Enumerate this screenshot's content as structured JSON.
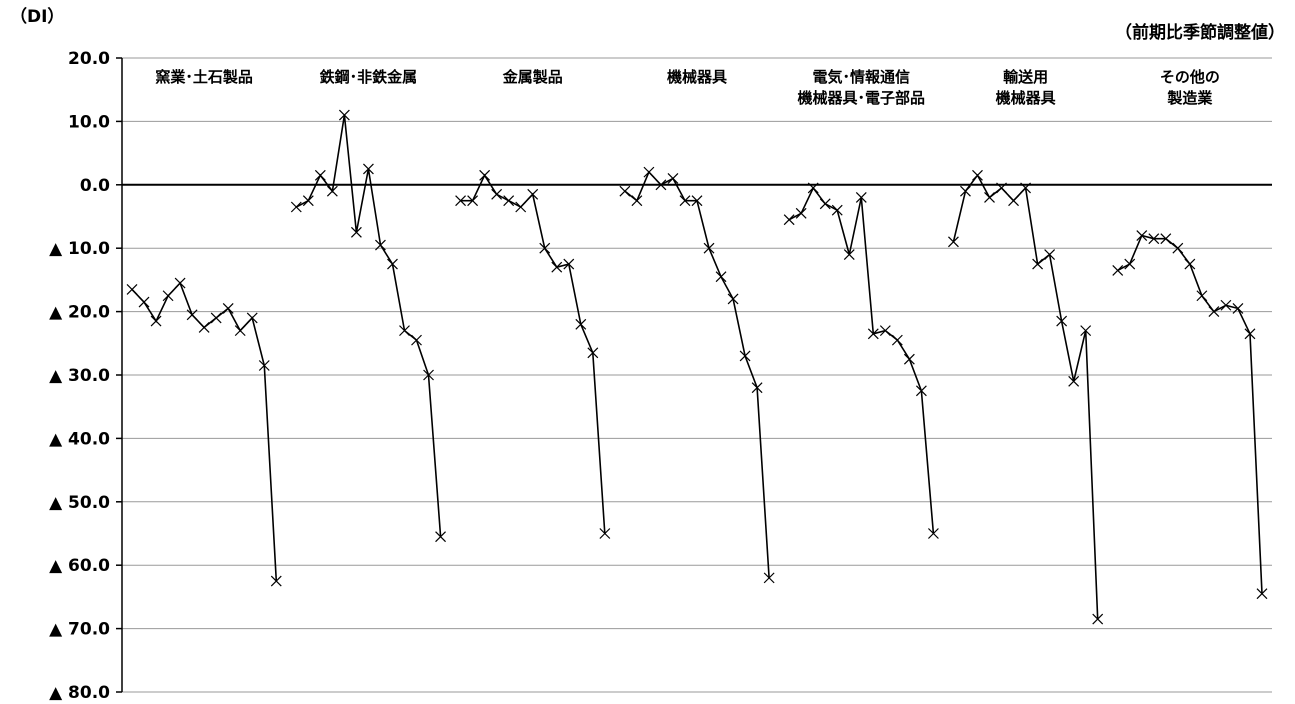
{
  "unit_left": "（DI）",
  "unit_right": "（前期比季節調整値）",
  "chart_data": {
    "type": "line",
    "ylim": [
      -80,
      20
    ],
    "y_ticks": [
      20,
      10,
      0,
      -10,
      -20,
      -30,
      -40,
      -50,
      -60,
      -70,
      -80
    ],
    "y_tick_labels": [
      "20.0",
      "10.0",
      "0.0",
      "▲ 10.0",
      "▲ 20.0",
      "▲ 30.0",
      "▲ 40.0",
      "▲ 50.0",
      "▲ 60.0",
      "▲ 70.0",
      "▲ 80.0"
    ],
    "grid": true,
    "marker": "x",
    "industries": [
      {
        "label": [
          "窯業･土石製品"
        ],
        "values": [
          -16.5,
          -18.5,
          -21.5,
          -17.5,
          -15.5,
          -20.5,
          -22.5,
          -21.0,
          -19.5,
          -23.0,
          -21.0,
          -28.5,
          -62.5
        ]
      },
      {
        "label": [
          "鉄鋼･非鉄金属"
        ],
        "values": [
          -3.5,
          -2.5,
          1.5,
          -1.0,
          11.0,
          -7.5,
          2.5,
          -9.5,
          -12.5,
          -23.0,
          -24.5,
          -30.0,
          -55.5
        ]
      },
      {
        "label": [
          "金属製品"
        ],
        "values": [
          -2.5,
          -2.5,
          1.5,
          -1.5,
          -2.5,
          -3.5,
          -1.5,
          -10.0,
          -13.0,
          -12.5,
          -22.0,
          -26.5,
          -55.0
        ]
      },
      {
        "label": [
          "機械器具"
        ],
        "values": [
          -1.0,
          -2.5,
          2.0,
          0.0,
          1.0,
          -2.5,
          -2.5,
          -10.0,
          -14.5,
          -18.0,
          -27.0,
          -32.0,
          -62.0
        ]
      },
      {
        "label": [
          "電気･情報通信",
          "機械器具･電子部品"
        ],
        "values": [
          -5.5,
          -4.5,
          -0.5,
          -3.0,
          -4.0,
          -11.0,
          -2.0,
          -23.5,
          -23.0,
          -24.5,
          -27.5,
          -32.5,
          -55.0
        ]
      },
      {
        "label": [
          "輸送用",
          "機械器具"
        ],
        "values": [
          -9.0,
          -1.0,
          1.5,
          -2.0,
          -0.5,
          -2.5,
          -0.5,
          -12.5,
          -11.0,
          -21.5,
          -31.0,
          -23.0,
          -68.5
        ]
      },
      {
        "label": [
          "その他の",
          "製造業"
        ],
        "values": [
          -13.5,
          -12.5,
          -8.0,
          -8.5,
          -8.5,
          -10.0,
          -12.5,
          -17.5,
          -20.0,
          -19.0,
          -19.5,
          -23.5,
          -64.5
        ]
      }
    ]
  }
}
